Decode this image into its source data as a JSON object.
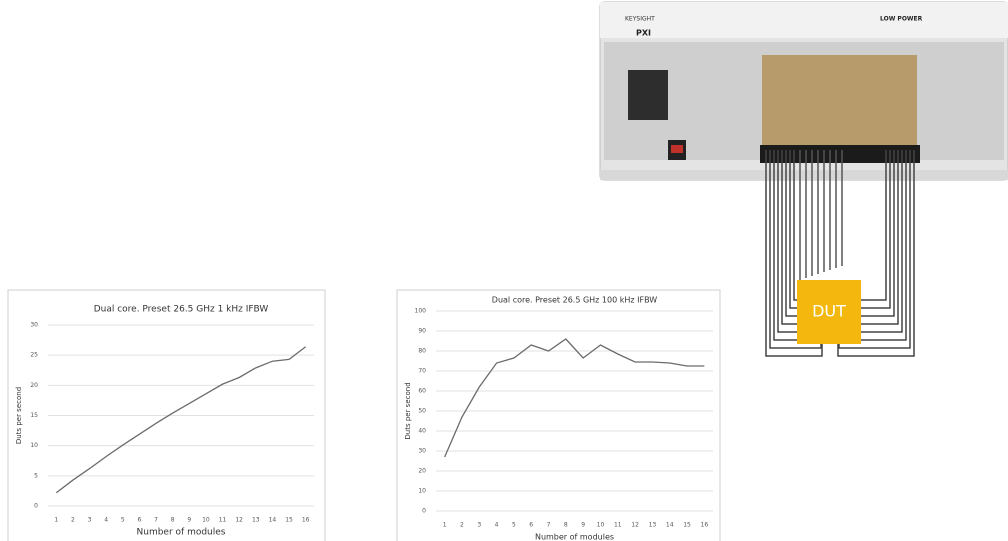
{
  "chart_data": [
    {
      "type": "line",
      "title": "Dual core. Preset 26.5 GHz 1 kHz IFBW",
      "x_label": "Number of modules",
      "y_label": "Duts per second",
      "categories": [
        "1",
        "2",
        "3",
        "4",
        "5",
        "6",
        "7",
        "8",
        "9",
        "10",
        "11",
        "12",
        "13",
        "14",
        "15",
        "16"
      ],
      "values": [
        2.2,
        4.3,
        6.2,
        8.2,
        10.1,
        11.9,
        13.7,
        15.4,
        17.0,
        18.6,
        20.2,
        21.3,
        22.9,
        24.0,
        24.3,
        26.4
      ],
      "color": "#6b6b6b",
      "ylim": [
        0,
        30
      ],
      "yticks": [
        0,
        5,
        10,
        15,
        20,
        25,
        30
      ],
      "grid": true
    },
    {
      "type": "line",
      "title": "Dual core. Preset 26.5 GHz 100 kHz IFBW",
      "x_label": "Number of modules",
      "y_label": "Duts per second",
      "categories": [
        "1",
        "2",
        "3",
        "4",
        "5",
        "6",
        "7",
        "8",
        "9",
        "10",
        "11",
        "12",
        "13",
        "14",
        "15",
        "16"
      ],
      "values": [
        27,
        47,
        62,
        74,
        76.5,
        83,
        80,
        86,
        76.5,
        83,
        78.5,
        74.5,
        74.5,
        74,
        72.5,
        72.5
      ],
      "color": "#6b6b6b",
      "ylim": [
        0,
        100
      ],
      "yticks": [
        0,
        10,
        20,
        30,
        40,
        50,
        60,
        70,
        80,
        90,
        100
      ],
      "grid": true
    }
  ],
  "equipment": {
    "brand": "KEYSIGHT",
    "chassis": "PXI",
    "mode": "LOW POWER",
    "device": "DUT"
  }
}
